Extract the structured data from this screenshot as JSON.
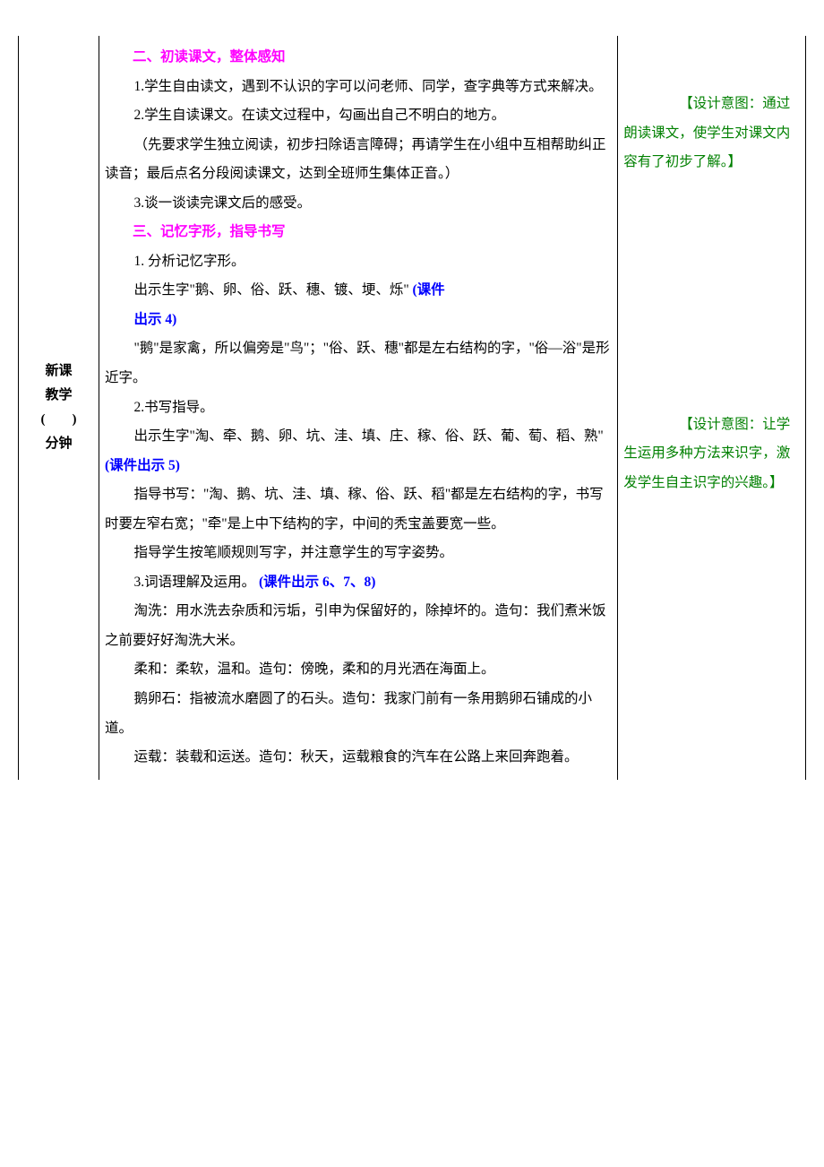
{
  "left_column": {
    "line1": "新课",
    "line2": "教学",
    "line3": "(　　)",
    "line4": "分钟"
  },
  "middle_column": {
    "heading1": "二、初读课文，整体感知",
    "p1": "1.学生自由读文，遇到不认识的字可以问老师、同学，查字典等方式来解决。",
    "p2": "2.学生自读课文。在读文过程中，勾画出自己不明白的地方。",
    "p3": "（先要求学生独立阅读，初步扫除语言障碍；再请学生在小组中互相帮助纠正读音；最后点名分段阅读课文，达到全班师生集体正音。）",
    "p4": "3.谈一谈读完课文后的感受。",
    "heading2": "三、记忆字形，指导书写",
    "p5": "1. 分析记忆字形。",
    "p6_prefix": "出示生字\"鹅、卵、俗、跃、穗、镀、埂、烁\"",
    "p6_blue": "(课件",
    "p6_blue_line2": "出示 4)",
    "p7": "\"鹅\"是家禽，所以偏旁是\"鸟\"；\"俗、跃、穗\"都是左右结构的字，\"俗—浴\"是形近字。",
    "p8": "2.书写指导。",
    "p9_prefix": "出示生字\"淘、牵、鹅、卵、坑、洼、填、庄、稼、俗、跃、葡、萄、稻、熟\" ",
    "p9_blue": " (课件出示 5)",
    "p10": "指导书写：\"淘、鹅、坑、洼、填、稼、俗、跃、稻\"都是左右结构的字，书写时要左窄右宽；\"牵\"是上中下结构的字，中间的秃宝盖要宽一些。",
    "p11": "指导学生按笔顺规则写字，并注意学生的写字姿势。",
    "p12_prefix": "3.词语理解及运用。 ",
    "p12_blue": " (课件出示 6、7、8)",
    "p13": "淘洗：用水洗去杂质和污垢，引申为保留好的，除掉坏的。造句：我们煮米饭之前要好好淘洗大米。",
    "p14_prefix": "柔和：柔软，温和。造句：傍晚，柔和的月光洒在海面上。",
    "p14_faded": "",
    "p15": "鹅卵石：指被流水磨圆了的石头。造句：我家门前有一条用鹅卵石铺成的小道。",
    "p16": "运载：装载和运送。造句：秋天，运载粮食的汽车在公路上来回奔跑着。"
  },
  "right_column": {
    "note1": "【设计意图：通过朗读课文，使学生对课文内容有了初步了解。】",
    "note2": "【设计意图：让学生运用多种方法来识字，激发学生自主识字的兴趣。】"
  }
}
